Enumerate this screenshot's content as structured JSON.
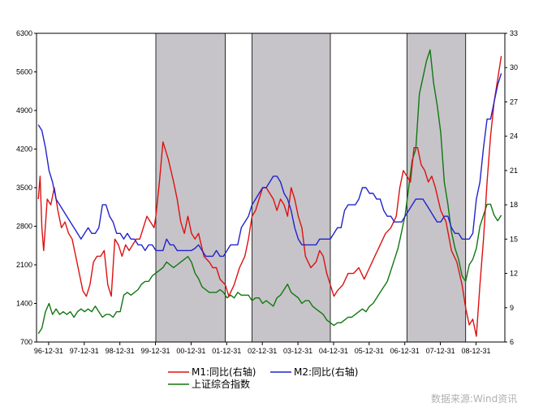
{
  "chart_data": {
    "type": "line",
    "title": "",
    "xlabel": "",
    "ylabel_left": "",
    "ylabel_right": "",
    "x_ticks": [
      "96-12-31",
      "97-12-31",
      "98-12-31",
      "99-12-31",
      "00-12-31",
      "01-12-31",
      "02-12-31",
      "03-12-31",
      "04-12-31",
      "05-12-31",
      "06-12-31",
      "07-12-31",
      "08-12-31"
    ],
    "y_left_ticks": [
      700,
      1400,
      2100,
      2800,
      3500,
      4200,
      4900,
      5600,
      6300
    ],
    "y_left_lim": [
      700,
      6300
    ],
    "y_right_ticks": [
      6,
      9,
      12,
      15,
      18,
      21,
      24,
      27,
      30,
      33
    ],
    "y_right_lim": [
      6,
      33
    ],
    "x_lim": [
      1996.65,
      2009.8
    ],
    "shaded_periods": [
      [
        2000.0,
        2001.95
      ],
      [
        2002.7,
        2004.9
      ],
      [
        2007.05,
        2008.7
      ]
    ],
    "legend_placement": "bottom",
    "watermark": "数据来源:Wind资讯",
    "series": [
      {
        "name": "M1:同比(右轴)",
        "axis": "right",
        "color": "#dd1111",
        "x": [
          1996.7,
          1996.75,
          1996.8,
          1996.85,
          1996.95,
          1997.05,
          1997.15,
          1997.25,
          1997.35,
          1997.45,
          1997.55,
          1997.65,
          1997.75,
          1997.85,
          1997.95,
          1998.05,
          1998.15,
          1998.25,
          1998.35,
          1998.45,
          1998.55,
          1998.65,
          1998.75,
          1998.85,
          1998.95,
          1999.05,
          1999.15,
          1999.25,
          1999.35,
          1999.45,
          1999.55,
          1999.65,
          1999.75,
          1999.85,
          1999.95,
          2000.0,
          2000.1,
          2000.2,
          2000.35,
          2000.5,
          2000.6,
          2000.7,
          2000.8,
          2000.9,
          2001.0,
          2001.1,
          2001.2,
          2001.35,
          2001.5,
          2001.6,
          2001.7,
          2001.8,
          2001.95,
          2002.05,
          2002.2,
          2002.35,
          2002.5,
          2002.6,
          2002.7,
          2002.8,
          2002.9,
          2003.0,
          2003.1,
          2003.2,
          2003.3,
          2003.4,
          2003.5,
          2003.6,
          2003.7,
          2003.8,
          2003.9,
          2004.0,
          2004.1,
          2004.2,
          2004.35,
          2004.5,
          2004.6,
          2004.7,
          2004.8,
          2004.9,
          2005.0,
          2005.1,
          2005.25,
          2005.4,
          2005.55,
          2005.7,
          2005.85,
          2006.0,
          2006.15,
          2006.3,
          2006.45,
          2006.6,
          2006.75,
          2006.85,
          2006.95,
          2007.05,
          2007.15,
          2007.25,
          2007.35,
          2007.45,
          2007.55,
          2007.65,
          2007.75,
          2007.85,
          2008.0,
          2008.15,
          2008.3,
          2008.45,
          2008.6,
          2008.7,
          2008.8,
          2008.9,
          2009.0,
          2009.1,
          2009.2,
          2009.3,
          2009.4,
          2009.5,
          2009.6,
          2009.7
        ],
        "y": [
          18.5,
          20.5,
          16,
          14,
          18.5,
          18,
          19.5,
          17.5,
          16,
          16.5,
          15.5,
          15,
          13.5,
          12,
          10.5,
          10,
          11,
          13,
          13.5,
          13.5,
          14,
          11,
          10,
          15,
          14.5,
          13.5,
          14.5,
          14,
          14.5,
          15,
          15,
          16,
          17,
          16.5,
          16,
          17,
          20,
          23.5,
          22,
          20,
          18.5,
          16.5,
          15.5,
          17,
          15.5,
          15,
          15.5,
          13.5,
          13,
          12.5,
          12.5,
          11.5,
          11,
          10,
          11,
          12.5,
          13.5,
          15,
          17,
          17.5,
          18.5,
          19.5,
          19.5,
          19,
          18.5,
          17.5,
          18.5,
          18,
          17,
          19.5,
          18.5,
          17,
          16,
          13.5,
          12.5,
          13,
          14,
          13.5,
          12,
          11,
          10,
          10.5,
          11,
          12,
          12,
          12.5,
          11.5,
          12.5,
          13.5,
          14.5,
          15.5,
          16,
          17,
          19.5,
          21,
          20.5,
          20,
          23,
          23,
          21.5,
          21,
          20,
          20.5,
          19.5,
          17.5,
          16.5,
          14,
          13,
          11,
          9,
          7.5,
          8,
          6.5,
          11,
          15,
          20,
          24,
          27,
          29,
          31
        ]
      },
      {
        "name": "M2:同比(右轴)",
        "axis": "right",
        "color": "#2222cc",
        "x": [
          1996.7,
          1996.8,
          1996.9,
          1997.0,
          1997.1,
          1997.2,
          1997.3,
          1997.4,
          1997.5,
          1997.6,
          1997.7,
          1997.8,
          1997.9,
          1998.0,
          1998.1,
          1998.2,
          1998.3,
          1998.4,
          1998.5,
          1998.6,
          1998.7,
          1998.8,
          1998.9,
          1999.0,
          1999.1,
          1999.2,
          1999.3,
          1999.4,
          1999.5,
          1999.6,
          1999.7,
          1999.8,
          1999.9,
          2000.0,
          2000.1,
          2000.2,
          2000.3,
          2000.4,
          2000.5,
          2000.6,
          2000.7,
          2000.8,
          2000.9,
          2001.0,
          2001.1,
          2001.2,
          2001.3,
          2001.4,
          2001.5,
          2001.6,
          2001.7,
          2001.8,
          2001.9,
          2002.0,
          2002.1,
          2002.2,
          2002.3,
          2002.4,
          2002.5,
          2002.6,
          2002.7,
          2002.8,
          2002.9,
          2003.0,
          2003.1,
          2003.2,
          2003.3,
          2003.4,
          2003.5,
          2003.6,
          2003.7,
          2003.8,
          2003.9,
          2004.0,
          2004.1,
          2004.2,
          2004.3,
          2004.4,
          2004.5,
          2004.6,
          2004.7,
          2004.8,
          2004.9,
          2005.0,
          2005.1,
          2005.2,
          2005.3,
          2005.4,
          2005.5,
          2005.6,
          2005.7,
          2005.8,
          2005.9,
          2006.0,
          2006.1,
          2006.2,
          2006.3,
          2006.4,
          2006.5,
          2006.6,
          2006.7,
          2006.8,
          2006.9,
          2007.0,
          2007.1,
          2007.2,
          2007.3,
          2007.4,
          2007.5,
          2007.6,
          2007.7,
          2007.8,
          2007.9,
          2008.0,
          2008.1,
          2008.2,
          2008.3,
          2008.4,
          2008.5,
          2008.6,
          2008.7,
          2008.8,
          2008.9,
          2009.0,
          2009.1,
          2009.2,
          2009.3,
          2009.4,
          2009.5,
          2009.6,
          2009.7
        ],
        "y": [
          25,
          24.5,
          23,
          21,
          20,
          18.5,
          18,
          17.5,
          17,
          16.5,
          16,
          15.5,
          15,
          15.5,
          16,
          15.5,
          15.5,
          16,
          18,
          18,
          17,
          16.5,
          15.5,
          15.5,
          15,
          15.5,
          15,
          15,
          14.5,
          14.5,
          14,
          14.5,
          14.5,
          14,
          14,
          14,
          15,
          14.5,
          14.5,
          14,
          14,
          14,
          14,
          14,
          14.2,
          14.5,
          14,
          13.5,
          13.5,
          13.5,
          14,
          13.5,
          13.5,
          14,
          14.5,
          14.5,
          14.5,
          16,
          16.5,
          17,
          18,
          18.5,
          19,
          19.5,
          19.5,
          20,
          20.5,
          20.5,
          20,
          19,
          18.5,
          17.5,
          16,
          15,
          14.5,
          14.5,
          14.5,
          14.5,
          14.5,
          15,
          15,
          15,
          15,
          15.5,
          16,
          16,
          17.5,
          18,
          18,
          18,
          18.5,
          19.5,
          19.5,
          19,
          19,
          18.5,
          18.5,
          17.5,
          17,
          17,
          16.5,
          16.5,
          16.5,
          17,
          17.5,
          18,
          18.5,
          18.5,
          18.5,
          18,
          17.5,
          17,
          16.5,
          16.5,
          17,
          17,
          16,
          15.5,
          15.5,
          15,
          15,
          15,
          15.5,
          18.5,
          20,
          23,
          25.5,
          25.5,
          27,
          28.5,
          29.5
        ]
      },
      {
        "name": "上证综合指数",
        "axis": "left",
        "color": "#117711",
        "x": [
          1996.7,
          1996.8,
          1996.9,
          1997.0,
          1997.1,
          1997.2,
          1997.3,
          1997.4,
          1997.5,
          1997.6,
          1997.7,
          1997.8,
          1997.9,
          1998.0,
          1998.1,
          1998.2,
          1998.3,
          1998.4,
          1998.5,
          1998.6,
          1998.7,
          1998.8,
          1998.9,
          1999.0,
          1999.1,
          1999.2,
          1999.3,
          1999.4,
          1999.5,
          1999.6,
          1999.7,
          1999.8,
          1999.9,
          2000.0,
          2000.1,
          2000.2,
          2000.3,
          2000.4,
          2000.5,
          2000.6,
          2000.7,
          2000.8,
          2000.9,
          2001.0,
          2001.1,
          2001.2,
          2001.3,
          2001.4,
          2001.5,
          2001.6,
          2001.7,
          2001.8,
          2001.9,
          2002.0,
          2002.1,
          2002.2,
          2002.3,
          2002.4,
          2002.5,
          2002.6,
          2002.7,
          2002.8,
          2002.9,
          2003.0,
          2003.1,
          2003.2,
          2003.3,
          2003.4,
          2003.5,
          2003.6,
          2003.7,
          2003.8,
          2003.9,
          2004.0,
          2004.1,
          2004.2,
          2004.3,
          2004.4,
          2004.5,
          2004.6,
          2004.7,
          2004.8,
          2004.9,
          2005.0,
          2005.1,
          2005.2,
          2005.3,
          2005.4,
          2005.5,
          2005.6,
          2005.7,
          2005.8,
          2005.9,
          2006.0,
          2006.1,
          2006.2,
          2006.3,
          2006.4,
          2006.5,
          2006.6,
          2006.7,
          2006.8,
          2006.9,
          2007.0,
          2007.1,
          2007.2,
          2007.3,
          2007.4,
          2007.5,
          2007.6,
          2007.7,
          2007.8,
          2007.9,
          2008.0,
          2008.1,
          2008.2,
          2008.3,
          2008.4,
          2008.5,
          2008.6,
          2008.7,
          2008.8,
          2008.9,
          2009.0,
          2009.1,
          2009.2,
          2009.3,
          2009.4,
          2009.5,
          2009.6,
          2009.7
        ],
        "y": [
          850,
          950,
          1250,
          1400,
          1200,
          1300,
          1200,
          1250,
          1200,
          1250,
          1150,
          1250,
          1300,
          1250,
          1300,
          1250,
          1350,
          1250,
          1150,
          1200,
          1200,
          1150,
          1250,
          1250,
          1550,
          1600,
          1550,
          1600,
          1650,
          1750,
          1800,
          1800,
          1900,
          1950,
          2000,
          2050,
          2150,
          2100,
          2050,
          2100,
          2150,
          2200,
          2250,
          2150,
          1950,
          1850,
          1700,
          1650,
          1600,
          1600,
          1600,
          1650,
          1600,
          1500,
          1550,
          1500,
          1600,
          1550,
          1550,
          1550,
          1450,
          1500,
          1500,
          1400,
          1450,
          1400,
          1350,
          1500,
          1550,
          1650,
          1750,
          1600,
          1550,
          1500,
          1400,
          1450,
          1450,
          1350,
          1300,
          1250,
          1200,
          1100,
          1050,
          1000,
          1050,
          1050,
          1100,
          1150,
          1150,
          1200,
          1250,
          1300,
          1250,
          1350,
          1400,
          1500,
          1600,
          1700,
          1800,
          2000,
          2200,
          2400,
          2700,
          3000,
          3500,
          4000,
          4200,
          5200,
          5500,
          5800,
          6000,
          5400,
          5000,
          4500,
          3600,
          3200,
          2700,
          2400,
          2200,
          1900,
          1800,
          2100,
          2200,
          2400,
          2800,
          3000,
          3200,
          3200,
          3000,
          2900,
          3000
        ]
      }
    ]
  },
  "legend": {
    "m1": "M1:同比(右轴)",
    "m2": "M2:同比(右轴)",
    "sh": "上证综合指数"
  }
}
